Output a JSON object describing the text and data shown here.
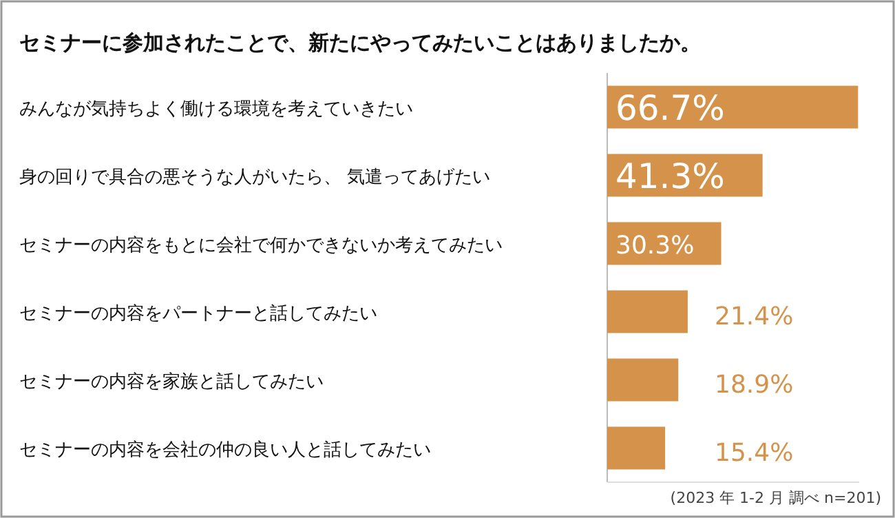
{
  "chart_data": {
    "type": "bar",
    "orientation": "horizontal",
    "title": "セミナーに参加されたことで、新たにやってみたいことはありましたか。",
    "categories": [
      "みんなが気持ちよく働ける環境を考えていきたい",
      "身の回りで具合の悪そうな人がいたら、 気遣ってあげたい",
      "セミナーの内容をもとに会社で何かできないか考えてみたい",
      "セミナーの内容をパートナーと話してみたい",
      "セミナーの内容を家族と話してみたい",
      "セミナーの内容を会社の仲の良い人と話してみたい"
    ],
    "values": [
      66.7,
      41.3,
      30.3,
      21.4,
      18.9,
      15.4
    ],
    "value_labels": [
      "66.7%",
      "41.3%",
      "30.3%",
      "21.4%",
      "18.9%",
      "15.4%"
    ],
    "color": "#d4924a",
    "xlim": [
      0,
      67
    ],
    "annotations": [
      "(2023 年 1-2 月 調べ n=201)"
    ]
  }
}
